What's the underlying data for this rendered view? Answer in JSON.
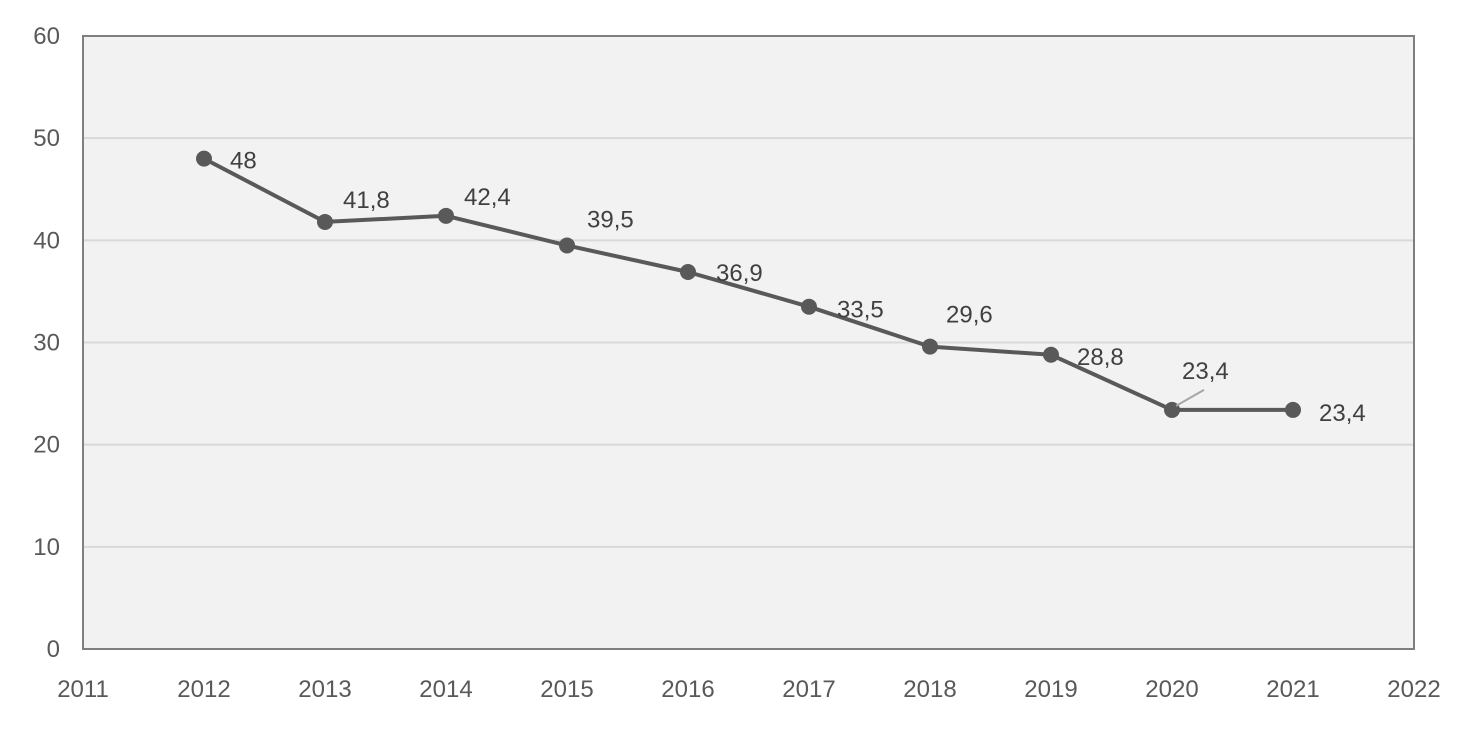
{
  "chart_data": {
    "type": "line",
    "title": "",
    "xlabel": "",
    "ylabel": "",
    "xlim": [
      2011,
      2022
    ],
    "ylim": [
      0,
      60
    ],
    "x_ticks": [
      "2011",
      "2012",
      "2013",
      "2014",
      "2015",
      "2016",
      "2017",
      "2018",
      "2019",
      "2020",
      "2021",
      "2022"
    ],
    "y_ticks": [
      "0",
      "10",
      "20",
      "30",
      "40",
      "50",
      "60"
    ],
    "grid": true,
    "legend": "none",
    "colors": {
      "line": "#595959",
      "marker": "#595959",
      "plot_background": "#f2f2f2",
      "gridline": "#d9d9d9",
      "axis": "#7f7f7f",
      "leader_line": "#a6a6a6"
    },
    "series": [
      {
        "x": [
          2012,
          2013,
          2014,
          2015,
          2016,
          2017,
          2018,
          2019,
          2020,
          2021
        ],
        "values": [
          48,
          41.8,
          42.4,
          39.5,
          36.9,
          33.5,
          29.6,
          28.8,
          23.4,
          23.4
        ],
        "labels": [
          "48",
          "41,8",
          "42,4",
          "39,5",
          "36,9",
          "33,5",
          "29,6",
          "28,8",
          "23,4",
          "23,4"
        ]
      }
    ]
  }
}
